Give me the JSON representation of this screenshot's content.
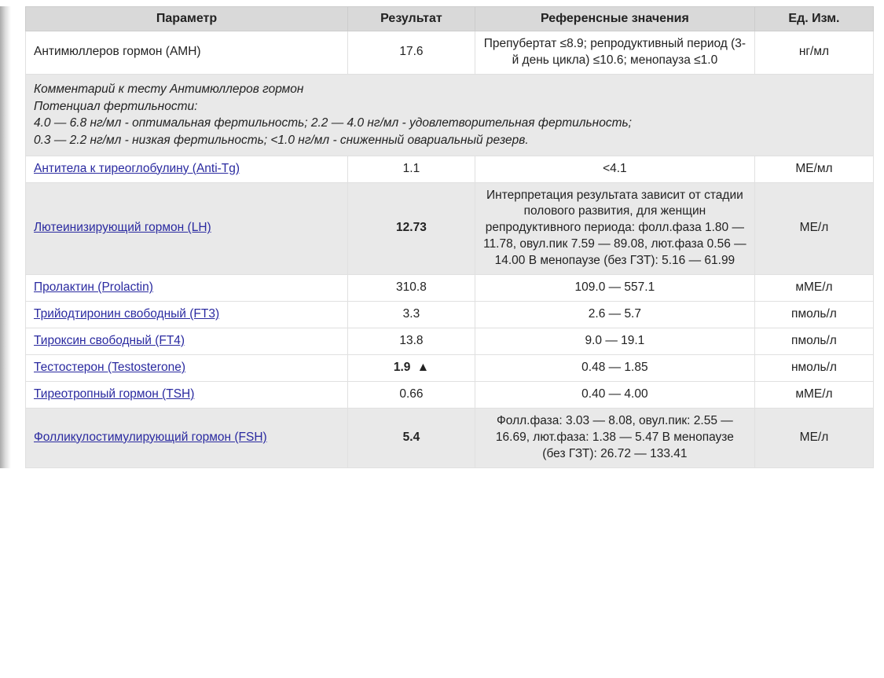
{
  "columns": {
    "param": "Параметр",
    "result": "Результат",
    "ref": "Референсные значения",
    "unit": "Ед. Изм."
  },
  "comment": {
    "title": "Комментарий к тесту Антимюллеров гормон",
    "line1": "Потенциал фертильности:",
    "line2": "4.0 — 6.8 нг/мл - оптимальная фертильность; 2.2 — 4.0 нг/мл - удовлетворительная фертильность;",
    "line3": "0.3 — 2.2 нг/мл - низкая фертильность; <1.0 нг/мл - сниженный овариальный резерв."
  },
  "rows": {
    "amh": {
      "param": "Антимюллеров гормон (AMH)",
      "result": "17.6",
      "ref": "Препубертат ≤8.9; репродуктивный период (3-й день цикла) ≤10.6; менопауза ≤1.0",
      "unit": "нг/мл"
    },
    "antitg": {
      "param": "Антитела к тиреоглобулину (Anti-Tg)",
      "result": "1.1",
      "ref": "<4.1",
      "unit": "МЕ/мл"
    },
    "lh": {
      "param": "Лютеинизирующий гормон (LH)",
      "result": "12.73",
      "ref": "Интерпретация результата зависит от стадии полового развития, для женщин репродуктивного периода: фолл.фаза 1.80 — 11.78, овул.пик 7.59 — 89.08, лют.фаза 0.56 — 14.00 В менопаузе (без ГЗТ): 5.16 — 61.99",
      "unit": "МЕ/л"
    },
    "prl": {
      "param": "Пролактин (Prolactin)",
      "result": "310.8",
      "ref": "109.0 — 557.1",
      "unit": "мМЕ/л"
    },
    "ft3": {
      "param": "Трийодтиронин свободный (FT3)",
      "result": "3.3",
      "ref": "2.6 — 5.7",
      "unit": "пмоль/л"
    },
    "ft4": {
      "param": "Тироксин свободный (FT4)",
      "result": "13.8",
      "ref": "9.0 — 19.1",
      "unit": "пмоль/л"
    },
    "testo": {
      "param": "Тестостерон (Testosterone)",
      "result": "1.9",
      "ref": "0.48 — 1.85",
      "unit": "нмоль/л",
      "flag": "▲"
    },
    "tsh": {
      "param": "Тиреотропный гормон (TSH)",
      "result": "0.66",
      "ref": "0.40 — 4.00",
      "unit": "мМЕ/л"
    },
    "fsh": {
      "param": "Фолликулостимулирующий гормон  (FSH)",
      "result": "5.4",
      "ref": "Фолл.фаза: 3.03 — 8.08, овул.пик: 2.55 — 16.69, лют.фаза: 1.38 — 5.47 В менопаузе (без ГЗТ): 26.72 — 133.41",
      "unit": "МЕ/л"
    }
  },
  "styling": {
    "header_bg": "#d9d9d9",
    "shade_bg": "#e9e9e9",
    "link_color": "#2a2aa0",
    "text_color": "#222222",
    "border_color": "#e0e0e0",
    "font_family": "Arial",
    "header_fontsize_pt": 12,
    "body_fontsize_pt": 11.5,
    "column_widths_pct": [
      38,
      15,
      33,
      14
    ]
  }
}
